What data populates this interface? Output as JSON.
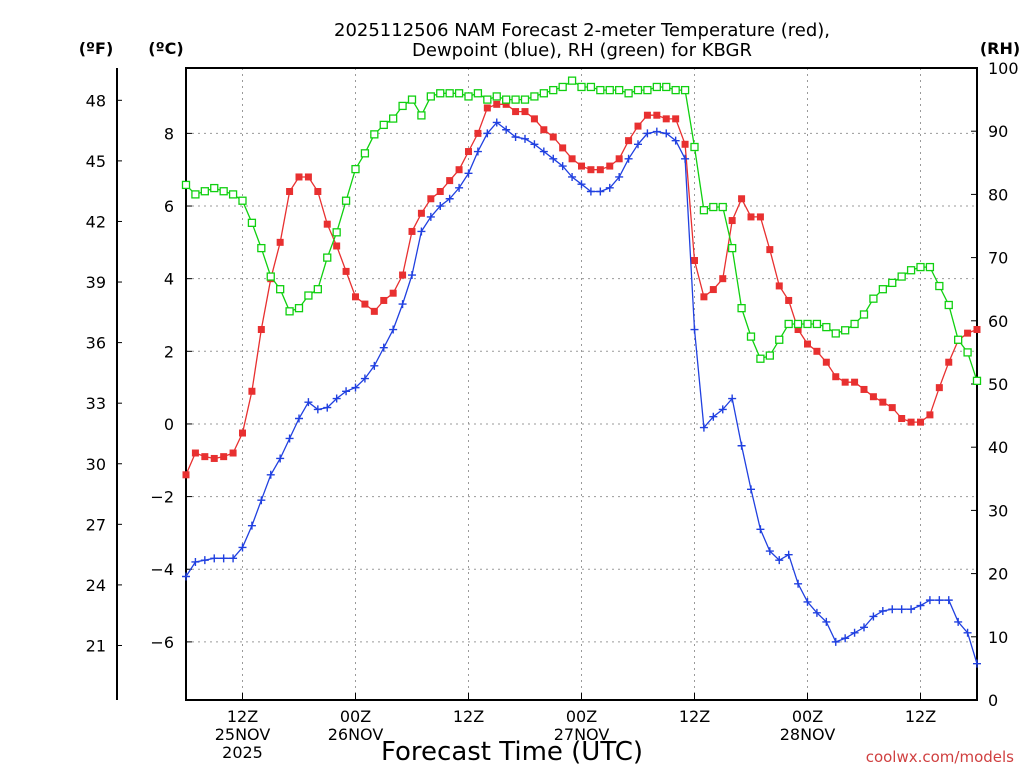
{
  "title_line1": "2025112506 NAM Forecast 2-meter Temperature (red),",
  "title_line2": "Dewpoint (blue), RH (green) for KBGR",
  "unit_f": "(ºF)",
  "unit_c": "(ºC)",
  "unit_rh": "(RH)",
  "xlabel": "Forecast Time (UTC)",
  "credit": "coolwx.com/models",
  "colors": {
    "temperature": "#e83030",
    "dewpoint": "#2040e0",
    "rh": "#10d010",
    "credit": "#d04040"
  },
  "chart_data": {
    "type": "line",
    "x_unit": "hours since 2025-11-25 06Z",
    "x_range": [
      0,
      84
    ],
    "x_ticks": [
      {
        "hour": 6,
        "lines": [
          "12Z",
          "25NOV",
          "2025"
        ]
      },
      {
        "hour": 18,
        "lines": [
          "00Z",
          "26NOV"
        ]
      },
      {
        "hour": 30,
        "lines": [
          "12Z"
        ]
      },
      {
        "hour": 42,
        "lines": [
          "00Z",
          "27NOV"
        ]
      },
      {
        "hour": 54,
        "lines": [
          "12Z"
        ]
      },
      {
        "hour": 66,
        "lines": [
          "00Z",
          "28NOV"
        ]
      },
      {
        "hour": 78,
        "lines": [
          "12Z"
        ]
      }
    ],
    "y_left_c": {
      "range": [
        -7.6,
        9.8
      ],
      "ticks": [
        -6,
        -4,
        -2,
        0,
        2,
        4,
        6,
        8
      ]
    },
    "y_left_f": {
      "range": [
        18.3,
        49.6
      ],
      "ticks": [
        21,
        24,
        27,
        30,
        33,
        36,
        39,
        42,
        45,
        48
      ]
    },
    "y_right_rh": {
      "range": [
        0,
        100
      ],
      "ticks": [
        0,
        10,
        20,
        30,
        40,
        50,
        60,
        70,
        80,
        90,
        100
      ]
    },
    "grid": true,
    "series": [
      {
        "name": "Temperature",
        "axis": "C",
        "color": "#e83030",
        "marker": "filled-square",
        "points": [
          [
            0,
            -1.4
          ],
          [
            1,
            -0.8
          ],
          [
            2,
            -0.9
          ],
          [
            3,
            -0.95
          ],
          [
            4,
            -0.9
          ],
          [
            5,
            -0.8
          ],
          [
            6,
            -0.25
          ],
          [
            7,
            0.9
          ],
          [
            8,
            2.6
          ],
          [
            9,
            4.0
          ],
          [
            10,
            5.0
          ],
          [
            11,
            6.4
          ],
          [
            12,
            6.8
          ],
          [
            13,
            6.8
          ],
          [
            14,
            6.4
          ],
          [
            15,
            5.5
          ],
          [
            16,
            4.9
          ],
          [
            17,
            4.2
          ],
          [
            18,
            3.5
          ],
          [
            19,
            3.3
          ],
          [
            20,
            3.1
          ],
          [
            21,
            3.4
          ],
          [
            22,
            3.6
          ],
          [
            23,
            4.1
          ],
          [
            24,
            5.3
          ],
          [
            25,
            5.8
          ],
          [
            26,
            6.2
          ],
          [
            27,
            6.4
          ],
          [
            28,
            6.7
          ],
          [
            29,
            7.0
          ],
          [
            30,
            7.5
          ],
          [
            31,
            8.0
          ],
          [
            32,
            8.7
          ],
          [
            33,
            8.8
          ],
          [
            34,
            8.8
          ],
          [
            35,
            8.6
          ],
          [
            36,
            8.6
          ],
          [
            37,
            8.4
          ],
          [
            38,
            8.1
          ],
          [
            39,
            7.9
          ],
          [
            40,
            7.6
          ],
          [
            41,
            7.3
          ],
          [
            42,
            7.1
          ],
          [
            43,
            7.0
          ],
          [
            44,
            7.0
          ],
          [
            45,
            7.1
          ],
          [
            46,
            7.3
          ],
          [
            47,
            7.8
          ],
          [
            48,
            8.2
          ],
          [
            49,
            8.5
          ],
          [
            50,
            8.5
          ],
          [
            51,
            8.4
          ],
          [
            52,
            8.4
          ],
          [
            53,
            7.7
          ],
          [
            54,
            4.5
          ],
          [
            55,
            3.5
          ],
          [
            56,
            3.7
          ],
          [
            57,
            4.0
          ],
          [
            58,
            5.6
          ],
          [
            59,
            6.2
          ],
          [
            60,
            5.7
          ],
          [
            61,
            5.7
          ],
          [
            62,
            4.8
          ],
          [
            63,
            3.8
          ],
          [
            64,
            3.4
          ],
          [
            65,
            2.6
          ],
          [
            66,
            2.2
          ],
          [
            67,
            2.0
          ],
          [
            68,
            1.7
          ],
          [
            69,
            1.3
          ],
          [
            70,
            1.15
          ],
          [
            71,
            1.15
          ],
          [
            72,
            0.95
          ],
          [
            73,
            0.75
          ],
          [
            74,
            0.6
          ],
          [
            75,
            0.45
          ],
          [
            76,
            0.15
          ],
          [
            77,
            0.05
          ],
          [
            78,
            0.05
          ],
          [
            79,
            0.25
          ],
          [
            80,
            1.0
          ],
          [
            81,
            1.7
          ],
          [
            82,
            2.3
          ],
          [
            83,
            2.5
          ],
          [
            84,
            2.6
          ]
        ]
      },
      {
        "name": "Dewpoint",
        "axis": "C",
        "color": "#2040e0",
        "marker": "plus",
        "points": [
          [
            0,
            -4.2
          ],
          [
            1,
            -3.8
          ],
          [
            2,
            -3.75
          ],
          [
            3,
            -3.7
          ],
          [
            4,
            -3.7
          ],
          [
            5,
            -3.7
          ],
          [
            6,
            -3.4
          ],
          [
            7,
            -2.8
          ],
          [
            8,
            -2.1
          ],
          [
            9,
            -1.4
          ],
          [
            10,
            -0.95
          ],
          [
            11,
            -0.4
          ],
          [
            12,
            0.15
          ],
          [
            13,
            0.6
          ],
          [
            14,
            0.4
          ],
          [
            15,
            0.45
          ],
          [
            16,
            0.7
          ],
          [
            17,
            0.9
          ],
          [
            18,
            1.0
          ],
          [
            19,
            1.25
          ],
          [
            20,
            1.6
          ],
          [
            21,
            2.1
          ],
          [
            22,
            2.6
          ],
          [
            23,
            3.3
          ],
          [
            24,
            4.1
          ],
          [
            25,
            5.3
          ],
          [
            26,
            5.7
          ],
          [
            27,
            6.0
          ],
          [
            28,
            6.2
          ],
          [
            29,
            6.5
          ],
          [
            30,
            6.9
          ],
          [
            31,
            7.5
          ],
          [
            32,
            8.0
          ],
          [
            33,
            8.3
          ],
          [
            34,
            8.1
          ],
          [
            35,
            7.9
          ],
          [
            36,
            7.85
          ],
          [
            37,
            7.7
          ],
          [
            38,
            7.5
          ],
          [
            39,
            7.3
          ],
          [
            40,
            7.1
          ],
          [
            41,
            6.8
          ],
          [
            42,
            6.6
          ],
          [
            43,
            6.4
          ],
          [
            44,
            6.4
          ],
          [
            45,
            6.5
          ],
          [
            46,
            6.8
          ],
          [
            47,
            7.3
          ],
          [
            48,
            7.7
          ],
          [
            49,
            8.0
          ],
          [
            50,
            8.05
          ],
          [
            51,
            8.0
          ],
          [
            52,
            7.8
          ],
          [
            53,
            7.3
          ],
          [
            54,
            2.6
          ],
          [
            55,
            -0.1
          ],
          [
            56,
            0.2
          ],
          [
            57,
            0.4
          ],
          [
            58,
            0.7
          ],
          [
            59,
            -0.6
          ],
          [
            60,
            -1.8
          ],
          [
            61,
            -2.9
          ],
          [
            62,
            -3.5
          ],
          [
            63,
            -3.75
          ],
          [
            64,
            -3.6
          ],
          [
            65,
            -4.4
          ],
          [
            66,
            -4.9
          ],
          [
            67,
            -5.2
          ],
          [
            68,
            -5.45
          ],
          [
            69,
            -6.0
          ],
          [
            70,
            -5.9
          ],
          [
            71,
            -5.75
          ],
          [
            72,
            -5.6
          ],
          [
            73,
            -5.3
          ],
          [
            74,
            -5.15
          ],
          [
            75,
            -5.1
          ],
          [
            76,
            -5.1
          ],
          [
            77,
            -5.1
          ],
          [
            78,
            -5.0
          ],
          [
            79,
            -4.85
          ],
          [
            80,
            -4.85
          ],
          [
            81,
            -4.85
          ],
          [
            82,
            -5.45
          ],
          [
            83,
            -5.75
          ],
          [
            84,
            -6.6
          ]
        ]
      },
      {
        "name": "RH",
        "axis": "RH",
        "color": "#10d010",
        "marker": "open-square",
        "points": [
          [
            0,
            81.5
          ],
          [
            1,
            80
          ],
          [
            2,
            80.5
          ],
          [
            3,
            81
          ],
          [
            4,
            80.5
          ],
          [
            5,
            80
          ],
          [
            6,
            79
          ],
          [
            7,
            75.5
          ],
          [
            8,
            71.5
          ],
          [
            9,
            67
          ],
          [
            10,
            65
          ],
          [
            11,
            61.5
          ],
          [
            12,
            62
          ],
          [
            13,
            64
          ],
          [
            14,
            65
          ],
          [
            15,
            70
          ],
          [
            16,
            74
          ],
          [
            17,
            79
          ],
          [
            18,
            84
          ],
          [
            19,
            86.5
          ],
          [
            20,
            89.5
          ],
          [
            21,
            91
          ],
          [
            22,
            92
          ],
          [
            23,
            94
          ],
          [
            24,
            95
          ],
          [
            25,
            92.5
          ],
          [
            26,
            95.5
          ],
          [
            27,
            96
          ],
          [
            28,
            96
          ],
          [
            29,
            96
          ],
          [
            30,
            95.5
          ],
          [
            31,
            96
          ],
          [
            32,
            95
          ],
          [
            33,
            95.5
          ],
          [
            34,
            95
          ],
          [
            35,
            95
          ],
          [
            36,
            95
          ],
          [
            37,
            95.5
          ],
          [
            38,
            96
          ],
          [
            39,
            96.5
          ],
          [
            40,
            97
          ],
          [
            41,
            98
          ],
          [
            42,
            97
          ],
          [
            43,
            97
          ],
          [
            44,
            96.5
          ],
          [
            45,
            96.5
          ],
          [
            46,
            96.5
          ],
          [
            47,
            96
          ],
          [
            48,
            96.5
          ],
          [
            49,
            96.5
          ],
          [
            50,
            97
          ],
          [
            51,
            97
          ],
          [
            52,
            96.5
          ],
          [
            53,
            96.5
          ],
          [
            54,
            87.5
          ],
          [
            55,
            77.5
          ],
          [
            56,
            78
          ],
          [
            57,
            78
          ],
          [
            58,
            71.5
          ],
          [
            59,
            62
          ],
          [
            60,
            57.5
          ],
          [
            61,
            54
          ],
          [
            62,
            54.5
          ],
          [
            63,
            57
          ],
          [
            64,
            59.5
          ],
          [
            65,
            59.5
          ],
          [
            66,
            59.5
          ],
          [
            67,
            59.5
          ],
          [
            68,
            59
          ],
          [
            69,
            58
          ],
          [
            70,
            58.5
          ],
          [
            71,
            59.5
          ],
          [
            72,
            61
          ],
          [
            73,
            63.5
          ],
          [
            74,
            65
          ],
          [
            75,
            66
          ],
          [
            76,
            67
          ],
          [
            77,
            68
          ],
          [
            78,
            68.5
          ],
          [
            79,
            68.5
          ],
          [
            80,
            65.5
          ],
          [
            81,
            62.5
          ],
          [
            82,
            57
          ],
          [
            83,
            55
          ],
          [
            84,
            50.5
          ]
        ]
      }
    ]
  }
}
